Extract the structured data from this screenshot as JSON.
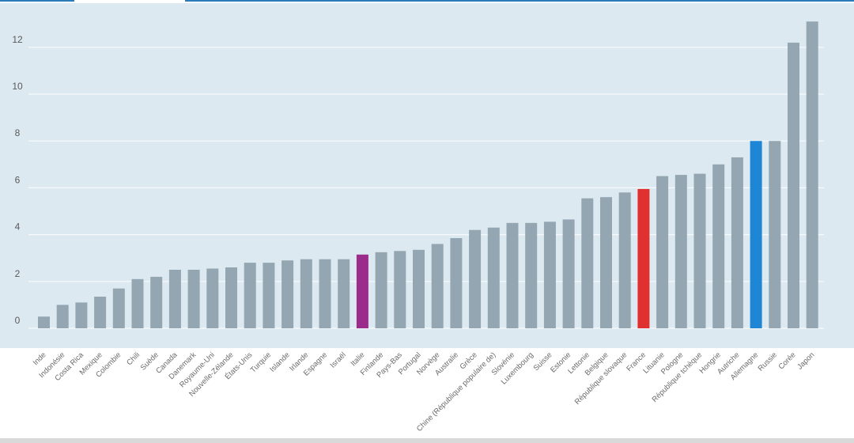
{
  "chart_data": {
    "type": "bar",
    "title": "",
    "xlabel": "",
    "ylabel": "",
    "ylim": [
      0,
      13
    ],
    "yticks": [
      0,
      2,
      4,
      6,
      8,
      10,
      12
    ],
    "grid": true,
    "categories": [
      "Inde",
      "Indonésie",
      "Costa Rica",
      "Mexique",
      "Colombie",
      "Chili",
      "Suède",
      "Canada",
      "Danemark",
      "Royaume-Uni",
      "Nouvelle-Zélande",
      "États-Unis",
      "Turquie",
      "Islande",
      "Irlande",
      "Espagne",
      "Israël",
      "Italie",
      "Finlande",
      "Pays-Bas",
      "Portugal",
      "Norvège",
      "Australie",
      "Grèce",
      "Chine (République populaire de)",
      "Slovénie",
      "Luxembourg",
      "Suisse",
      "Estonie",
      "Lettonie",
      "Belgique",
      "République slovaque",
      "France",
      "Lituanie",
      "Pologne",
      "République tchèque",
      "Hongrie",
      "Autriche",
      "Allemagne",
      "Russie",
      "Corée",
      "Japon"
    ],
    "values": [
      0.5,
      1.0,
      1.1,
      1.35,
      1.7,
      2.1,
      2.2,
      2.5,
      2.5,
      2.55,
      2.6,
      2.8,
      2.8,
      2.9,
      2.95,
      2.95,
      2.95,
      3.15,
      3.25,
      3.3,
      3.35,
      3.6,
      3.85,
      4.2,
      4.3,
      4.5,
      4.5,
      4.55,
      4.65,
      5.55,
      5.6,
      5.8,
      5.95,
      6.5,
      6.55,
      6.6,
      7.0,
      7.3,
      8.0,
      8.0,
      12.2,
      13.1
    ],
    "highlights": {
      "Italie": "#9b2c8c",
      "France": "#e03030",
      "Allemagne": "#1f86d6"
    },
    "colors": {
      "bar": "#94a6b1",
      "plot_bg": "#dde9f0",
      "grid": "#f6fafc",
      "label_default": "#6a6a6a"
    }
  }
}
